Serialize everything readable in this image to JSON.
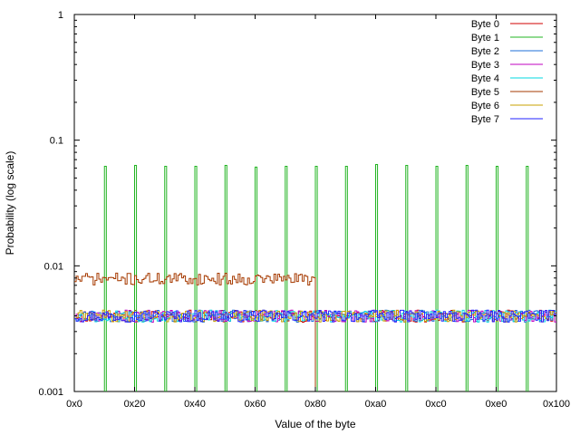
{
  "chart_data": {
    "type": "line",
    "xlabel": "Value of the byte",
    "ylabel": "Probability (log scale)",
    "xlim": [
      0,
      256
    ],
    "ylim": [
      0.001,
      1
    ],
    "log_y": true,
    "x_ticks": [
      {
        "value": 0,
        "label": "0x0"
      },
      {
        "value": 32,
        "label": "0x20"
      },
      {
        "value": 64,
        "label": "0x40"
      },
      {
        "value": 96,
        "label": "0x60"
      },
      {
        "value": 128,
        "label": "0x80"
      },
      {
        "value": 160,
        "label": "0xa0"
      },
      {
        "value": 192,
        "label": "0xc0"
      },
      {
        "value": 224,
        "label": "0xe0"
      },
      {
        "value": 256,
        "label": "0x100"
      }
    ],
    "y_ticks": [
      {
        "value": 0.001,
        "label": "0.001"
      },
      {
        "value": 0.01,
        "label": "0.01"
      },
      {
        "value": 0.1,
        "label": "0.1"
      },
      {
        "value": 1,
        "label": "1"
      }
    ],
    "legend_position": "top-right",
    "grid": false,
    "series": [
      {
        "name": "Byte 0",
        "color": "#d10000",
        "kind": "noise",
        "base": 0.004,
        "from": 0,
        "to": 256,
        "seed": 11
      },
      {
        "name": "Byte 1",
        "color": "#21b421",
        "kind": "spikes",
        "baseline": 0.001,
        "spikes": [
          {
            "x": 16,
            "y": 0.062
          },
          {
            "x": 32,
            "y": 0.063
          },
          {
            "x": 48,
            "y": 0.062
          },
          {
            "x": 64,
            "y": 0.062
          },
          {
            "x": 80,
            "y": 0.063
          },
          {
            "x": 96,
            "y": 0.061
          },
          {
            "x": 112,
            "y": 0.062
          },
          {
            "x": 128,
            "y": 0.062
          },
          {
            "x": 144,
            "y": 0.062
          },
          {
            "x": 160,
            "y": 0.064
          },
          {
            "x": 176,
            "y": 0.063
          },
          {
            "x": 192,
            "y": 0.062
          },
          {
            "x": 208,
            "y": 0.063
          },
          {
            "x": 224,
            "y": 0.062
          },
          {
            "x": 240,
            "y": 0.062
          }
        ]
      },
      {
        "name": "Byte 2",
        "color": "#1e6fd9",
        "kind": "noise",
        "base": 0.004,
        "from": 0,
        "to": 256,
        "seed": 23
      },
      {
        "name": "Byte 3",
        "color": "#c000c0",
        "kind": "noise",
        "base": 0.004,
        "from": 0,
        "to": 256,
        "seed": 37
      },
      {
        "name": "Byte 4",
        "color": "#00d8e0",
        "kind": "noise",
        "base": 0.004,
        "from": 0,
        "to": 256,
        "seed": 53
      },
      {
        "name": "Byte 5",
        "color": "#a63a00",
        "kind": "noise",
        "base": 0.0079,
        "from": 0,
        "to": 128,
        "seed": 71,
        "drop_to": 0.001
      },
      {
        "name": "Byte 6",
        "color": "#c8a000",
        "kind": "noise",
        "base": 0.004,
        "from": 0,
        "to": 256,
        "seed": 89
      },
      {
        "name": "Byte 7",
        "color": "#2222ff",
        "kind": "noise",
        "base": 0.004,
        "from": 0,
        "to": 256,
        "seed": 97
      }
    ]
  }
}
